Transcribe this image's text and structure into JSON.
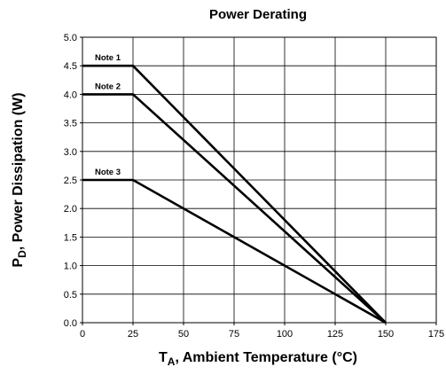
{
  "chart_data": {
    "type": "line",
    "title": "Power Derating",
    "xlabel": {
      "main": "T",
      "sub": "A",
      "rest": ", Ambient Temperature (°C)"
    },
    "ylabel": {
      "main": "P",
      "sub": "D",
      "rest": ", Power Dissipation (W)"
    },
    "xlim": [
      0,
      175
    ],
    "ylim": [
      0,
      5
    ],
    "xticks": [
      0,
      25,
      50,
      75,
      100,
      125,
      150,
      175
    ],
    "yticks": [
      "0.0",
      "0.5",
      "1.0",
      "1.5",
      "2.0",
      "2.5",
      "3.0",
      "3.5",
      "4.0",
      "4.5",
      "5.0"
    ],
    "grid": true,
    "series": [
      {
        "name": "Note 1",
        "x": [
          0,
          25,
          150
        ],
        "y": [
          4.5,
          4.5,
          0
        ]
      },
      {
        "name": "Note 2",
        "x": [
          0,
          25,
          150
        ],
        "y": [
          4.0,
          4.0,
          0
        ]
      },
      {
        "name": "Note 3",
        "x": [
          0,
          25,
          150
        ],
        "y": [
          2.5,
          2.5,
          0
        ]
      }
    ]
  }
}
